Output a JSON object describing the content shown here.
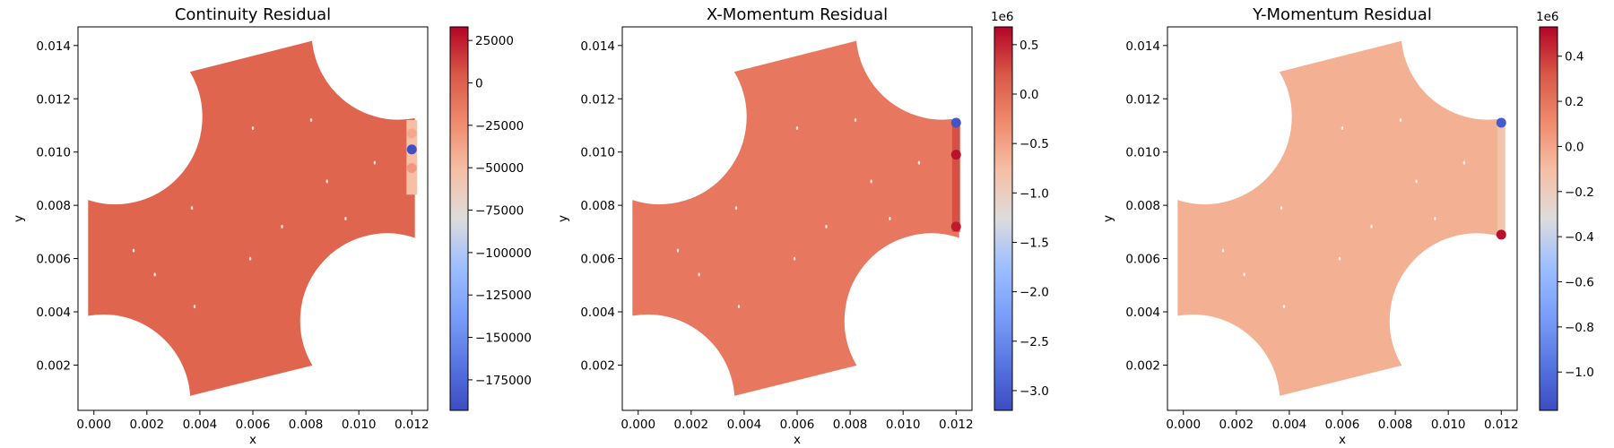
{
  "chart_data": [
    {
      "type": "scatter",
      "title": "Continuity Residual",
      "xlabel": "x",
      "ylabel": "y",
      "xlim": [
        -0.0006,
        0.0126
      ],
      "ylim": [
        0.0003,
        0.0147
      ],
      "xticks": [
        0.0,
        0.002,
        0.004,
        0.006,
        0.008,
        0.01,
        0.012
      ],
      "xtick_labels": [
        "0.000",
        "0.002",
        "0.004",
        "0.006",
        "0.008",
        "0.010",
        "0.012"
      ],
      "yticks": [
        0.002,
        0.004,
        0.006,
        0.008,
        0.01,
        0.012,
        0.014
      ],
      "ytick_labels": [
        "0.002",
        "0.004",
        "0.006",
        "0.008",
        "0.010",
        "0.012",
        "0.014"
      ],
      "colorbar": {
        "colormap": "coolwarm",
        "range": [
          -193000,
          33000
        ],
        "offset_text": "",
        "ticks": [
          25000,
          0,
          -25000,
          -50000,
          -75000,
          -100000,
          -125000,
          -150000,
          -175000
        ],
        "tick_labels": [
          "25000",
          "0",
          "−25000",
          "−50000",
          "−75000",
          "−100000",
          "−125000",
          "−150000",
          "−175000"
        ]
      },
      "domain_color": "#e0654f",
      "features": [
        {
          "x": 0.012,
          "y": 0.0101,
          "value": -190000
        },
        {
          "x": 0.012,
          "y": 0.0107,
          "value": -40000
        },
        {
          "x": 0.012,
          "y": 0.0094,
          "value": -30000
        }
      ]
    },
    {
      "type": "scatter",
      "title": "X-Momentum Residual",
      "xlabel": "x",
      "ylabel": "y",
      "xlim": [
        -0.0006,
        0.0126
      ],
      "ylim": [
        0.0003,
        0.0147
      ],
      "xticks": [
        0.0,
        0.002,
        0.004,
        0.006,
        0.008,
        0.01,
        0.012
      ],
      "xtick_labels": [
        "0.000",
        "0.002",
        "0.004",
        "0.006",
        "0.008",
        "0.010",
        "0.012"
      ],
      "yticks": [
        0.002,
        0.004,
        0.006,
        0.008,
        0.01,
        0.012,
        0.014
      ],
      "ytick_labels": [
        "0.002",
        "0.004",
        "0.006",
        "0.008",
        "0.010",
        "0.012",
        "0.014"
      ],
      "colorbar": {
        "colormap": "coolwarm",
        "range": [
          -3.2,
          0.68
        ],
        "offset_text": "1e6",
        "ticks": [
          0.5,
          0.0,
          -0.5,
          -1.0,
          -1.5,
          -2.0,
          -2.5,
          -3.0
        ],
        "tick_labels": [
          "0.5",
          "0.0",
          "−0.5",
          "−1.0",
          "−1.5",
          "−2.0",
          "−2.5",
          "−3.0"
        ]
      },
      "domain_color": "#e7775e",
      "features": [
        {
          "x": 0.012,
          "y": 0.0111,
          "value": -3.1
        },
        {
          "x": 0.012,
          "y": 0.0099,
          "value": 0.6
        },
        {
          "x": 0.012,
          "y": 0.0072,
          "value": 0.55
        }
      ]
    },
    {
      "type": "scatter",
      "title": "Y-Momentum Residual",
      "xlabel": "x",
      "ylabel": "y",
      "xlim": [
        -0.0006,
        0.0126
      ],
      "ylim": [
        0.0003,
        0.0147
      ],
      "xticks": [
        0.0,
        0.002,
        0.004,
        0.006,
        0.008,
        0.01,
        0.012
      ],
      "xtick_labels": [
        "0.000",
        "0.002",
        "0.004",
        "0.006",
        "0.008",
        "0.010",
        "0.012"
      ],
      "yticks": [
        0.002,
        0.004,
        0.006,
        0.008,
        0.01,
        0.012,
        0.014
      ],
      "ytick_labels": [
        "0.002",
        "0.004",
        "0.006",
        "0.008",
        "0.010",
        "0.012",
        "0.014"
      ],
      "colorbar": {
        "colormap": "coolwarm",
        "range": [
          -1.17,
          0.53
        ],
        "offset_text": "1e6",
        "ticks": [
          0.4,
          0.2,
          0.0,
          -0.2,
          -0.4,
          -0.6,
          -0.8,
          -1.0
        ],
        "tick_labels": [
          "0.4",
          "0.2",
          "0.0",
          "−0.2",
          "−0.4",
          "−0.6",
          "−0.8",
          "−1.0"
        ]
      },
      "domain_color": "#f4b093",
      "features": [
        {
          "x": 0.012,
          "y": 0.0111,
          "value": -1.1
        },
        {
          "x": 0.012,
          "y": 0.0069,
          "value": 0.5
        }
      ]
    }
  ]
}
